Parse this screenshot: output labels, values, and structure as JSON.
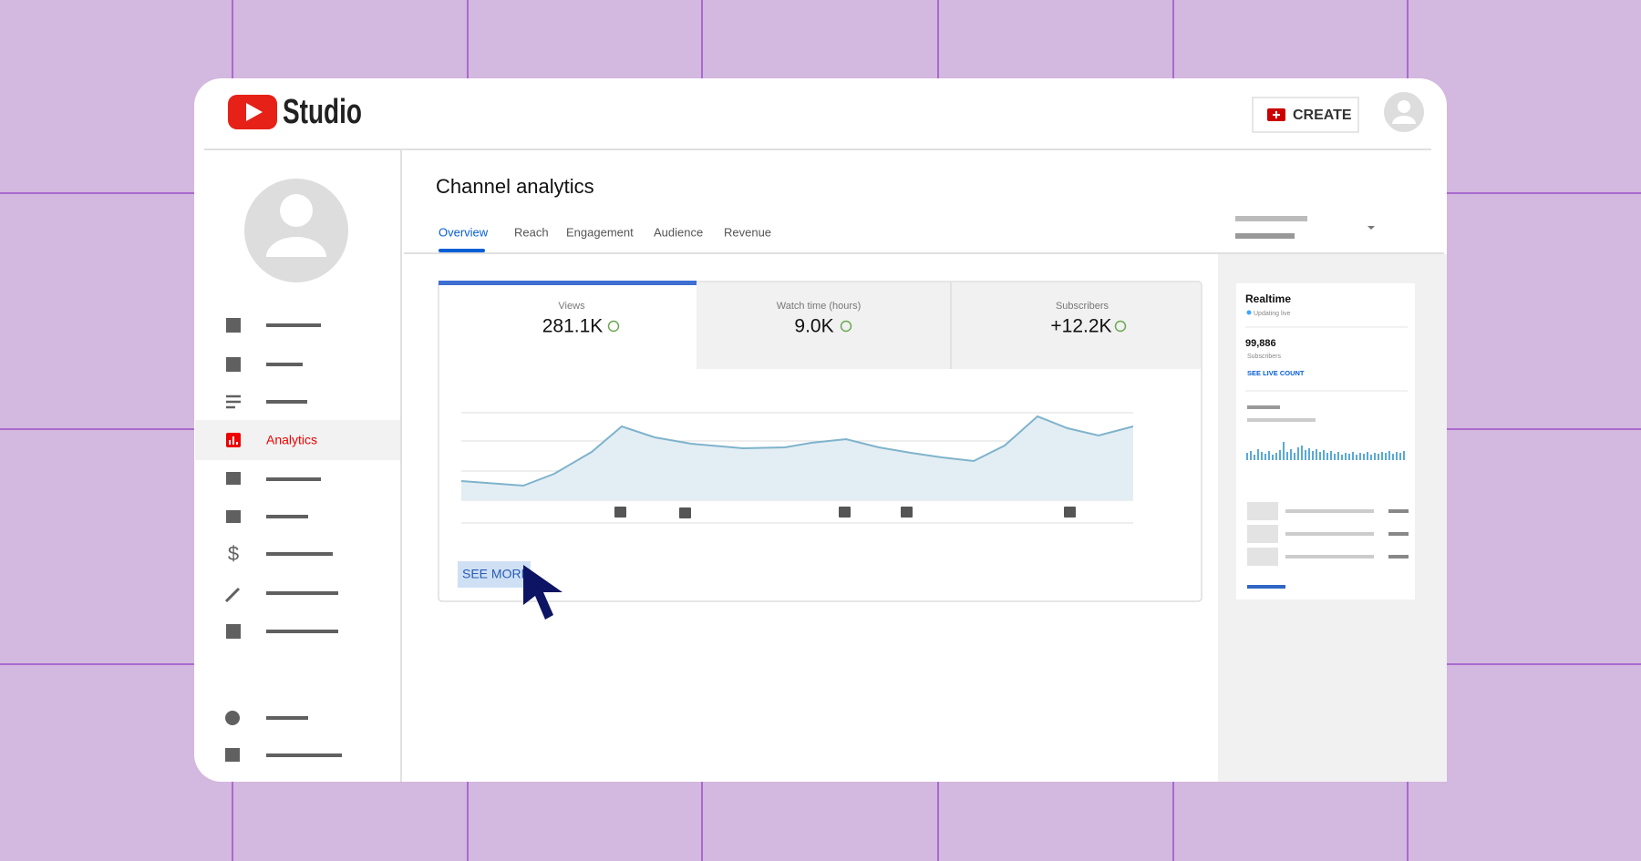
{
  "header": {
    "logo_text": "Studio",
    "create_button": "CREATE"
  },
  "sidebar": {
    "active_item": "Analytics"
  },
  "main": {
    "title": "Channel analytics",
    "tabs": [
      "Overview",
      "Reach",
      "Engagement",
      "Audience",
      "Revenue"
    ],
    "metrics": [
      {
        "label": "Views",
        "value": "281.1K"
      },
      {
        "label": "Watch time (hours)",
        "value": "9.0K"
      },
      {
        "label": "Subscribers",
        "value": "+12.2K"
      }
    ],
    "see_more": "SEE MORE"
  },
  "realtime": {
    "title": "Realtime",
    "status": "Updating live",
    "count": "99,886",
    "count_label": "Subscribers",
    "link": "SEE LIVE COUNT"
  }
}
